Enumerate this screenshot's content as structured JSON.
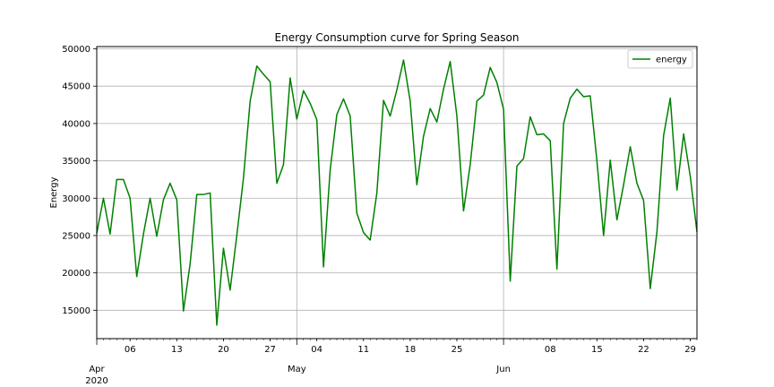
{
  "chart_data": {
    "type": "line",
    "title": "Energy Consumption curve for Spring Season",
    "xlabel": "",
    "ylabel": "Energy",
    "grid": true,
    "legend_position": "top-right",
    "colors": {
      "line": "#008000",
      "grid": "#b0b0b0",
      "axis": "#000000"
    },
    "x_start": "2020-04-01",
    "x_end": "2020-06-30",
    "ylim": [
      11200,
      50300
    ],
    "y_ticks": [
      15000,
      20000,
      25000,
      30000,
      35000,
      40000,
      45000,
      50000
    ],
    "x_minor_ticks": [
      {
        "date": "2020-04-06",
        "label": "06"
      },
      {
        "date": "2020-04-13",
        "label": "13"
      },
      {
        "date": "2020-04-20",
        "label": "20"
      },
      {
        "date": "2020-04-27",
        "label": "27"
      },
      {
        "date": "2020-05-04",
        "label": "04"
      },
      {
        "date": "2020-05-11",
        "label": "11"
      },
      {
        "date": "2020-05-18",
        "label": "18"
      },
      {
        "date": "2020-05-25",
        "label": "25"
      },
      {
        "date": "2020-06-08",
        "label": "08"
      },
      {
        "date": "2020-06-15",
        "label": "15"
      },
      {
        "date": "2020-06-22",
        "label": "22"
      },
      {
        "date": "2020-06-29",
        "label": "29"
      }
    ],
    "x_major_ticks": [
      {
        "date": "2020-04-01",
        "label": "Apr",
        "sublabel": "2020"
      },
      {
        "date": "2020-05-01",
        "label": "May",
        "sublabel": ""
      },
      {
        "date": "2020-06-01",
        "label": "Jun",
        "sublabel": ""
      }
    ],
    "series": [
      {
        "name": "energy",
        "x": [
          "2020-04-01",
          "2020-04-02",
          "2020-04-03",
          "2020-04-04",
          "2020-04-05",
          "2020-04-06",
          "2020-04-07",
          "2020-04-08",
          "2020-04-09",
          "2020-04-10",
          "2020-04-11",
          "2020-04-12",
          "2020-04-13",
          "2020-04-14",
          "2020-04-15",
          "2020-04-16",
          "2020-04-17",
          "2020-04-18",
          "2020-04-19",
          "2020-04-20",
          "2020-04-21",
          "2020-04-22",
          "2020-04-23",
          "2020-04-24",
          "2020-04-25",
          "2020-04-26",
          "2020-04-27",
          "2020-04-28",
          "2020-04-29",
          "2020-04-30",
          "2020-05-01",
          "2020-05-02",
          "2020-05-03",
          "2020-05-04",
          "2020-05-05",
          "2020-05-06",
          "2020-05-07",
          "2020-05-08",
          "2020-05-09",
          "2020-05-10",
          "2020-05-11",
          "2020-05-12",
          "2020-05-13",
          "2020-05-14",
          "2020-05-15",
          "2020-05-16",
          "2020-05-17",
          "2020-05-18",
          "2020-05-19",
          "2020-05-20",
          "2020-05-21",
          "2020-05-22",
          "2020-05-23",
          "2020-05-24",
          "2020-05-25",
          "2020-05-26",
          "2020-05-27",
          "2020-05-28",
          "2020-05-29",
          "2020-05-30",
          "2020-05-31",
          "2020-06-01",
          "2020-06-02",
          "2020-06-03",
          "2020-06-04",
          "2020-06-05",
          "2020-06-06",
          "2020-06-07",
          "2020-06-08",
          "2020-06-09",
          "2020-06-10",
          "2020-06-11",
          "2020-06-12",
          "2020-06-13",
          "2020-06-14",
          "2020-06-15",
          "2020-06-16",
          "2020-06-17",
          "2020-06-18",
          "2020-06-19",
          "2020-06-20",
          "2020-06-21",
          "2020-06-22",
          "2020-06-23",
          "2020-06-24",
          "2020-06-25",
          "2020-06-26",
          "2020-06-27",
          "2020-06-28",
          "2020-06-29",
          "2020-06-30"
        ],
        "values": [
          25300,
          30000,
          25200,
          32500,
          32500,
          30000,
          19500,
          25200,
          30000,
          24900,
          29800,
          32000,
          29800,
          14900,
          21200,
          30500,
          30500,
          30700,
          13000,
          23300,
          17700,
          25000,
          32700,
          43000,
          47700,
          46600,
          45600,
          32000,
          34500,
          46100,
          40600,
          44400,
          42700,
          40500,
          20800,
          33800,
          41200,
          43300,
          41000,
          28000,
          25400,
          24400,
          30700,
          43100,
          41000,
          44500,
          48500,
          43000,
          31800,
          38300,
          42000,
          40200,
          44600,
          48300,
          41000,
          28300,
          34500,
          43000,
          43800,
          47500,
          45500,
          41900,
          18900,
          34300,
          35300,
          40900,
          38500,
          38600,
          37700,
          20500,
          40000,
          43400,
          44600,
          43600,
          43700,
          35000,
          25000,
          35100,
          27100,
          31800,
          36900,
          32000,
          29700,
          17900,
          25500,
          38400,
          43400,
          31100,
          38600,
          32900,
          25500
        ]
      }
    ]
  }
}
